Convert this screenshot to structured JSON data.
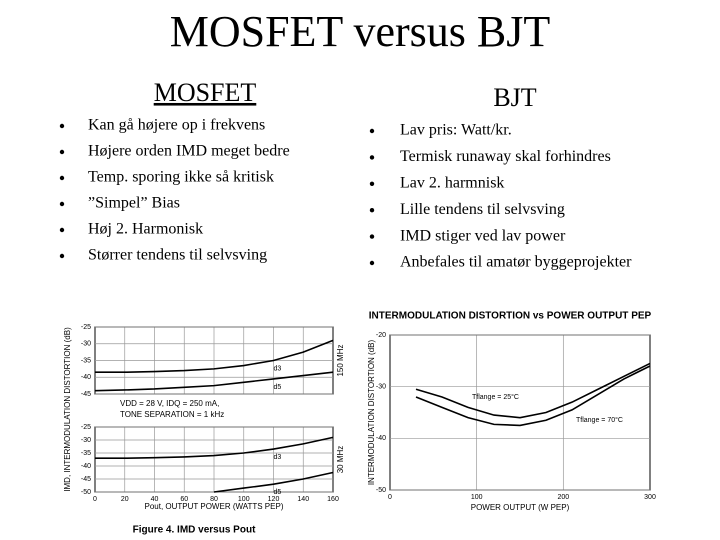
{
  "title": "MOSFET versus BJT",
  "columns": [
    {
      "heading": "MOSFET",
      "bullets": [
        "Kan gå højere op i frekvens",
        "Højere orden IMD meget bedre",
        "Temp. sporing ikke så kritisk",
        "”Simpel” Bias",
        "Høj 2. Harmonisk",
        "Størrer tendens til selvsving"
      ]
    },
    {
      "heading": "BJT",
      "bullets": [
        "Lav pris: Watt/kr.",
        "Termisk runaway skal forhindres",
        "Lav 2. harmnisk",
        "Lille tendens til selvsving",
        "IMD stiger ved lav power",
        "Anbefales til amatør byggeprojekter"
      ]
    }
  ],
  "figures": [
    {
      "caption": "Figure 4. IMD versus Pout",
      "ylabel": "IMD, INTERMODULATION DISTORTION (dB)",
      "xlabel": "Pout, OUTPUT POWER (WATTS PEP)",
      "xlim": [
        0,
        160
      ],
      "xticks": [
        0,
        20,
        40,
        60,
        80,
        100,
        120,
        140,
        160
      ],
      "annotations": [
        "VDD = 28 V, IDQ = 250 mA,",
        "TONE SEPARATION = 1 kHz"
      ],
      "panels": [
        {
          "label": "150 MHz",
          "ylim": [
            -45,
            -25
          ],
          "yticks": [
            -25,
            -30,
            -35,
            -40,
            -45
          ],
          "series": [
            {
              "name": "d3",
              "x": [
                0,
                20,
                40,
                60,
                80,
                100,
                120,
                140,
                160
              ],
              "values": [
                -38.5,
                -38.5,
                -38.3,
                -38,
                -37.5,
                -36.5,
                -35,
                -32.5,
                -29
              ]
            },
            {
              "name": "d5",
              "x": [
                0,
                20,
                40,
                60,
                80,
                100,
                120,
                140,
                160
              ],
              "values": [
                -44,
                -43.8,
                -43.5,
                -43,
                -42.5,
                -41.5,
                -40.5,
                -39.5,
                -38.5
              ]
            }
          ]
        },
        {
          "label": "30 MHz",
          "ylim": [
            -50,
            -25
          ],
          "yticks": [
            -25,
            -30,
            -35,
            -40,
            -45,
            -50
          ],
          "series": [
            {
              "name": "d3",
              "x": [
                0,
                20,
                40,
                60,
                80,
                100,
                120,
                140,
                160
              ],
              "values": [
                -37,
                -37,
                -36.8,
                -36.5,
                -36,
                -35,
                -33.5,
                -31.5,
                -29
              ]
            },
            {
              "name": "d5",
              "x": [
                80,
                100,
                120,
                140,
                160
              ],
              "values": [
                -50,
                -48.5,
                -47,
                -45,
                -42.5
              ]
            }
          ]
        }
      ]
    },
    {
      "title": "INTERMODULATION DISTORTION vs POWER OUTPUT PEP",
      "ylabel": "INTERMODULATION DISTORTION (dB)",
      "xlabel": "POWER OUTPUT (W PEP)",
      "xlim": [
        0,
        300
      ],
      "xticks": [
        0,
        100,
        200,
        300
      ],
      "panels": [
        {
          "ylim": [
            -50,
            -20
          ],
          "yticks": [
            -20,
            -30,
            -40,
            -50
          ],
          "series": [
            {
              "name": "Tflange = 25°C",
              "x": [
                30,
                60,
                90,
                120,
                150,
                180,
                210,
                240,
                270,
                300
              ],
              "values": [
                -30.5,
                -32,
                -34,
                -35.5,
                -36,
                -35,
                -33,
                -30.5,
                -28,
                -25.5
              ]
            },
            {
              "name": "Tflange = 70°C",
              "x": [
                30,
                60,
                90,
                120,
                150,
                180,
                210,
                240,
                270,
                300
              ],
              "values": [
                -32,
                -34,
                -36,
                -37.3,
                -37.5,
                -36.5,
                -34.5,
                -31.5,
                -28.5,
                -26
              ]
            }
          ]
        }
      ]
    }
  ]
}
